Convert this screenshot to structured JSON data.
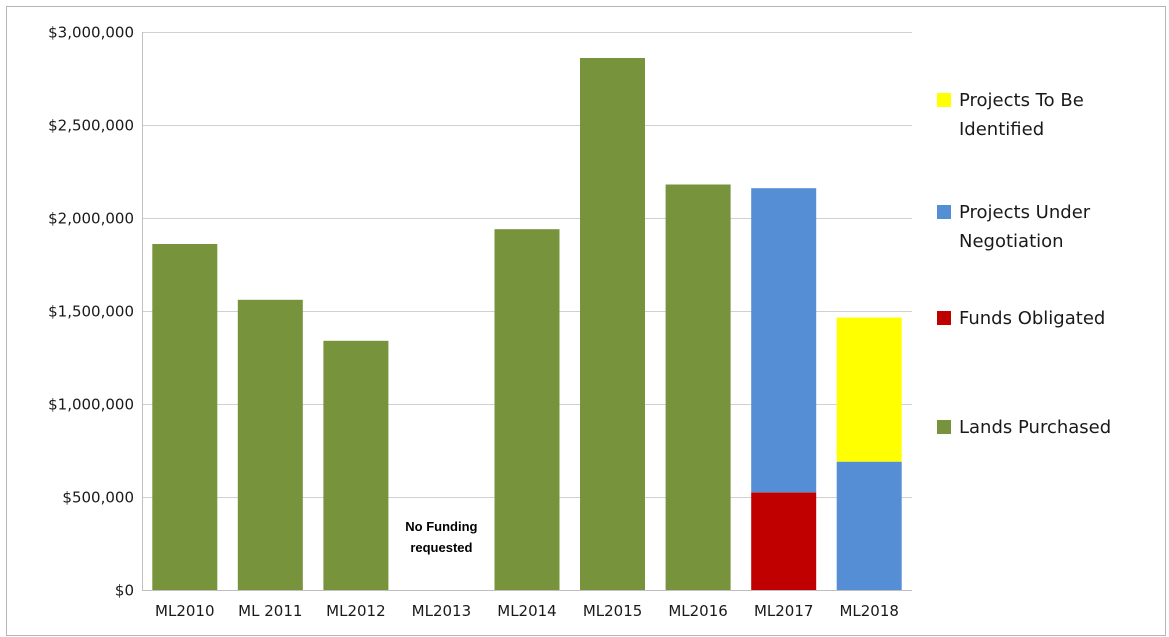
{
  "chart_data": {
    "type": "bar",
    "stacked": true,
    "categories": [
      "ML2010",
      "ML 2011",
      "ML2012",
      "ML2013",
      "ML2014",
      "ML2015",
      "ML2016",
      "ML2017",
      "ML2018"
    ],
    "series": [
      {
        "name": "Lands Purchased",
        "color": "#77933c",
        "values": [
          1860000,
          1560000,
          1340000,
          0,
          1940000,
          2860000,
          2180000,
          0,
          0
        ]
      },
      {
        "name": "Funds Obligated",
        "color": "#c00000",
        "values": [
          0,
          0,
          0,
          0,
          0,
          0,
          0,
          525000,
          0
        ]
      },
      {
        "name": "Projects Under Negotiation",
        "color": "#558ed5",
        "values": [
          0,
          0,
          0,
          0,
          0,
          0,
          0,
          1635000,
          690000
        ]
      },
      {
        "name": "Projects To Be Identified",
        "color": "#ffff00",
        "values": [
          0,
          0,
          0,
          0,
          0,
          0,
          0,
          0,
          775000
        ]
      }
    ],
    "ylim": [
      0,
      3000000
    ],
    "yticks": [
      0,
      500000,
      1000000,
      1500000,
      2000000,
      2500000,
      3000000
    ],
    "ytick_labels": [
      "$0",
      "$500,000",
      "$1,000,000",
      "$1,500,000",
      "$2,000,000",
      "$2,500,000",
      "$3,000,000"
    ],
    "grid": true,
    "legend_position": "right",
    "legend_order": [
      "Projects To Be Identified",
      "Projects Under Negotiation",
      "Funds Obligated",
      "Lands Purchased"
    ],
    "annotations": [
      {
        "category": "ML2013",
        "lines": [
          "No Funding",
          "requested"
        ]
      }
    ],
    "title": "",
    "xlabel": "",
    "ylabel": ""
  }
}
